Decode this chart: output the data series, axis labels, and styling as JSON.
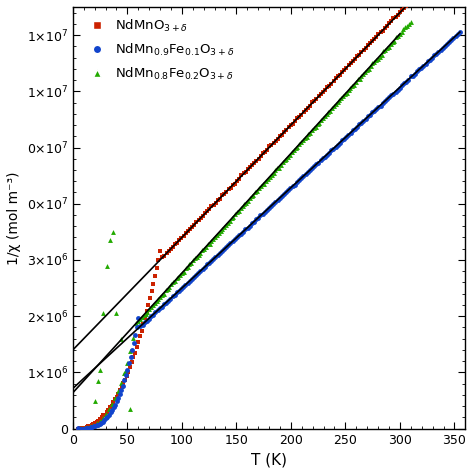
{
  "xlabel": "T (K)",
  "ylabel": "1/χ (mol m⁻³)",
  "xlim": [
    0,
    360
  ],
  "ylim": [
    0,
    7500000.0
  ],
  "yticks": [
    0,
    1000000.0,
    2000000.0,
    3000000.0,
    4000000.0,
    5000000.0,
    6000000.0,
    7000000.0
  ],
  "xticks": [
    0,
    50,
    100,
    150,
    200,
    250,
    300,
    350
  ],
  "legend_labels": [
    "NdMnO$_{3+\\delta}$",
    "NdMn$_{0.9}$Fe$_{0.1}$O$_{3+\\delta}$",
    "NdMn$_{0.8}$Fe$_{0.2}$O$_{3+\\delta}$"
  ],
  "colors": [
    "#cc2200",
    "#1144cc",
    "#22aa00"
  ],
  "marker_styles": [
    "s",
    "o",
    "^"
  ],
  "marker_sizes": [
    3.0,
    3.5,
    3.5
  ],
  "bg_color": "#ffffff",
  "cw_color": "#000000",
  "cw_lw": 1.2,
  "C1": 5e-05,
  "theta1": -70,
  "T1_trans": 78,
  "T1_high_start": 82,
  "T1_high_end": 355,
  "T1_low_start": 5,
  "T1_low_end": 80,
  "fit1_T0": 70,
  "fit1_T1": 355,
  "C2": 5.6e-05,
  "theta2": -40,
  "T2_trans": 58,
  "T2_high_start": 62,
  "T2_high_end": 355,
  "T2_low_start": 5,
  "T2_low_end": 60,
  "fit2_T0": 40,
  "fit2_T1": 355,
  "C3": 4.7e-05,
  "theta3": -30,
  "T3_trans": 58,
  "T3_high_start": 60,
  "T3_high_end": 310,
  "T3_low_start": 5,
  "T3_low_end": 58,
  "fit3_T0": 40,
  "fit3_T1": 300,
  "T3_anom_T": [
    20,
    23,
    25,
    28,
    31,
    34,
    37,
    40,
    44,
    48,
    52
  ],
  "T3_anom_y": [
    500000.0,
    850000.0,
    1050000.0,
    2050000.0,
    2900000.0,
    3350000.0,
    3500000.0,
    2050000.0,
    1600000.0,
    1000000.0,
    350000.0
  ]
}
